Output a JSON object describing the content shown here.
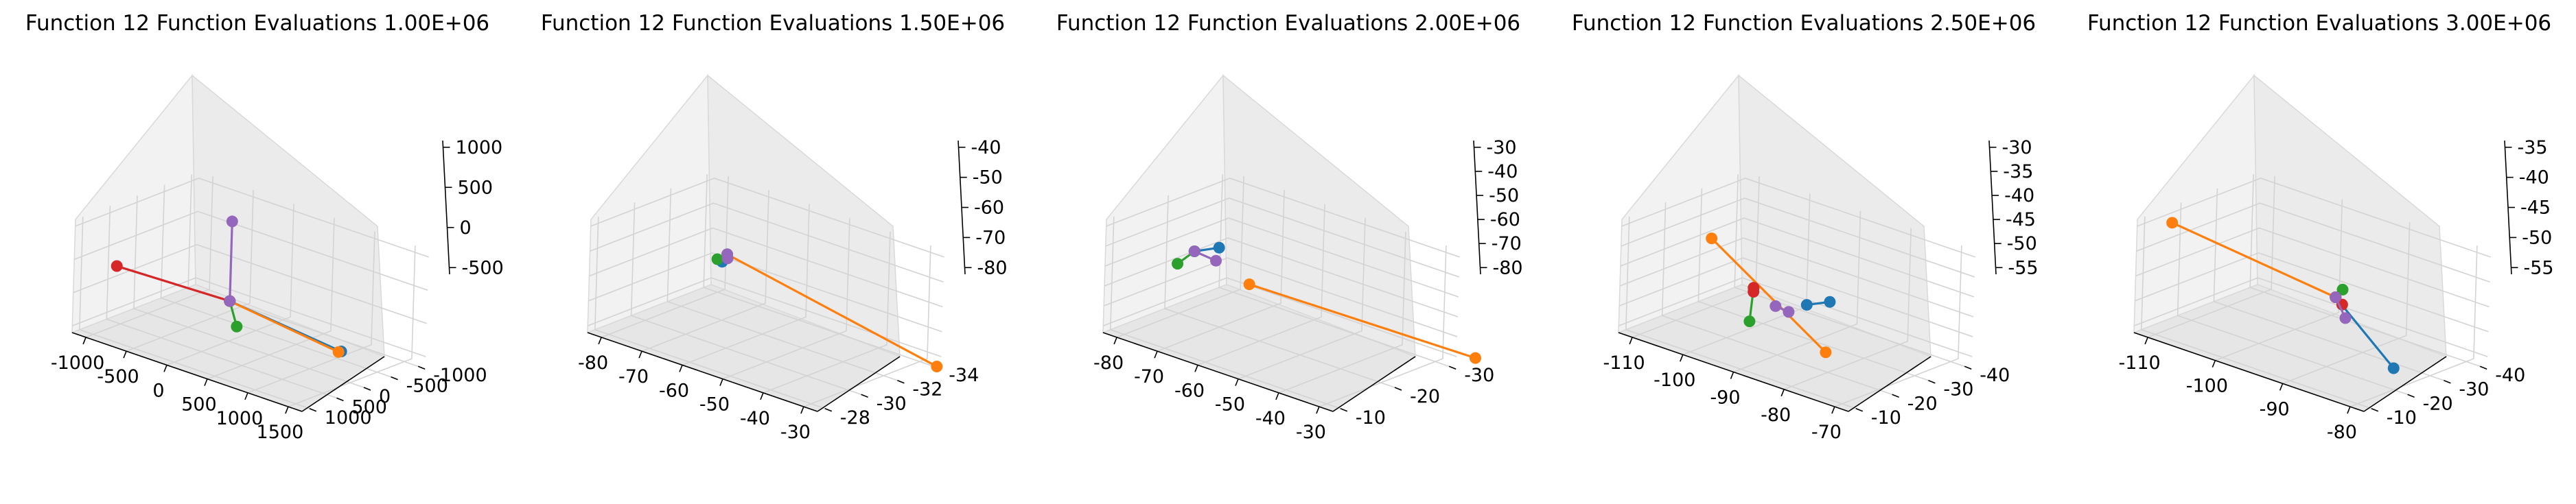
{
  "chart_data": [
    {
      "type": "scatter3d",
      "title": "Function 12 Function Evaluations 1.00E+06",
      "x_ticks": [
        "-1000",
        "-500",
        "0",
        "500",
        "1000",
        "1500"
      ],
      "y_ticks": [
        "1000",
        "500",
        "0",
        "-500",
        "-1000"
      ],
      "z_ticks": [
        "1000",
        "500",
        "0",
        "-500"
      ],
      "series": [
        {
          "color": "#1f77b4",
          "points": [
            [
              0,
              0,
              0
            ],
            [
              1250,
              -200,
              -300
            ]
          ]
        },
        {
          "color": "#ff7f0e",
          "points": [
            [
              0,
              0,
              0
            ],
            [
              1230,
              -180,
              -310
            ]
          ]
        },
        {
          "color": "#2ca02c",
          "points": [
            [
              0,
              0,
              0
            ],
            [
              -300,
              -600,
              -700
            ]
          ]
        },
        {
          "color": "#d62728",
          "points": [
            [
              0,
              0,
              0
            ],
            [
              -1000,
              600,
              300
            ]
          ]
        },
        {
          "color": "#9467bd",
          "points": [
            [
              0,
              0,
              0
            ],
            [
              0,
              0,
              1200
            ]
          ]
        }
      ]
    },
    {
      "type": "scatter3d",
      "title": "Function 12 Function Evaluations 1.50E+06",
      "x_ticks": [
        "-80",
        "-70",
        "-60",
        "-50",
        "-40",
        "-30"
      ],
      "y_ticks": [
        "-28",
        "-30",
        "-32",
        "-34"
      ],
      "z_ticks": [
        "-40",
        "-50",
        "-60",
        "-70",
        "-80"
      ],
      "series": [
        {
          "color": "#1f77b4",
          "points": [
            [
              -56,
              -29,
              -40
            ],
            [
              -55,
              -28.5,
              -41
            ]
          ]
        },
        {
          "color": "#ff7f0e",
          "points": [
            [
              -56,
              -29,
              -40
            ],
            [
              -28,
              -34.5,
              -85
            ]
          ]
        },
        {
          "color": "#2ca02c",
          "points": [
            [
              -56,
              -29,
              -40
            ],
            [
              -54,
              -28,
              -38
            ]
          ]
        },
        {
          "color": "#9467bd",
          "points": [
            [
              -56,
              -29,
              -40
            ],
            [
              -55,
              -28.8,
              -40.5
            ]
          ]
        }
      ]
    },
    {
      "type": "scatter3d",
      "title": "Function 12 Function Evaluations 2.00E+06",
      "x_ticks": [
        "-80",
        "-70",
        "-60",
        "-50",
        "-40",
        "-30"
      ],
      "y_ticks": [
        "-10",
        "-20",
        "-30"
      ],
      "z_ticks": [
        "-30",
        "-40",
        "-50",
        "-60",
        "-70",
        "-80"
      ],
      "series": [
        {
          "color": "#1f77b4",
          "points": [
            [
              -70,
              -15,
              -40
            ],
            [
              -64,
              -15,
              -34
            ]
          ]
        },
        {
          "color": "#ff7f0e",
          "points": [
            [
              -45,
              -5,
              -30
            ],
            [
              -25,
              -35,
              -82
            ]
          ]
        },
        {
          "color": "#2ca02c",
          "points": [
            [
              -70,
              -15,
              -40
            ],
            [
              -78,
              -18,
              -55
            ]
          ]
        },
        {
          "color": "#9467bd",
          "points": [
            [
              -70,
              -15,
              -40
            ],
            [
              -66,
              -16,
              -43
            ]
          ]
        }
      ]
    },
    {
      "type": "scatter3d",
      "title": "Function 12 Function Evaluations 2.50E+06",
      "x_ticks": [
        "-110",
        "-100",
        "-90",
        "-80",
        "-70"
      ],
      "y_ticks": [
        "-10",
        "-20",
        "-30",
        "-40"
      ],
      "z_ticks": [
        "-30",
        "-35",
        "-40",
        "-45",
        "-50",
        "-55"
      ],
      "series": [
        {
          "color": "#1f77b4",
          "points": [
            [
              -88,
              -25,
              -45
            ],
            [
              -80,
              -20,
              -39
            ]
          ]
        },
        {
          "color": "#ff7f0e",
          "points": [
            [
              -100,
              -15,
              -30
            ],
            [
              -70,
              -5,
              -42
            ]
          ]
        },
        {
          "color": "#2ca02c",
          "points": [
            [
              -95,
              -20,
              -42
            ],
            [
              -97,
              -22,
              -52
            ]
          ]
        },
        {
          "color": "#d62728",
          "points": [
            [
              -95,
              -20,
              -42
            ],
            [
              -95,
              -20,
              -43
            ]
          ]
        },
        {
          "color": "#9467bd",
          "points": [
            [
              -92,
              -22,
              -46
            ],
            [
              -88,
              -20,
              -45
            ]
          ]
        }
      ]
    },
    {
      "type": "scatter3d",
      "title": "Function 12 Function Evaluations 3.00E+06",
      "x_ticks": [
        "-110",
        "-100",
        "-90",
        "-80"
      ],
      "y_ticks": [
        "-10",
        "-20",
        "-30",
        "-40"
      ],
      "z_ticks": [
        "-35",
        "-40",
        "-45",
        "-50",
        "-55"
      ],
      "series": [
        {
          "color": "#1f77b4",
          "points": [
            [
              -90,
              -22,
              -43
            ],
            [
              -88,
              -35,
              -60
            ]
          ]
        },
        {
          "color": "#ff7f0e",
          "points": [
            [
              -90,
              -22,
              -43
            ],
            [
              -108,
              -10,
              -33
            ]
          ]
        },
        {
          "color": "#2ca02c",
          "points": [
            [
              -90,
              -22,
              -43
            ],
            [
              -89,
              -22,
              -41
            ]
          ]
        },
        {
          "color": "#d62728",
          "points": [
            [
              -90,
              -22,
              -43
            ],
            [
              -89,
              -22,
              -44
            ]
          ]
        },
        {
          "color": "#9467bd",
          "points": [
            [
              -90,
              -22,
              -43
            ],
            [
              -89,
              -23,
              -47
            ]
          ]
        }
      ]
    }
  ]
}
